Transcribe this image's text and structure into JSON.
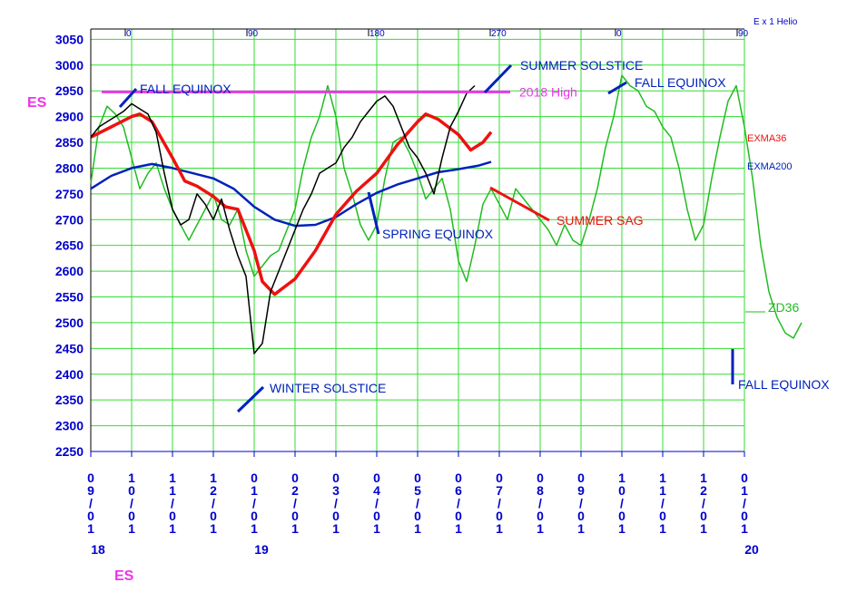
{
  "chart_data": {
    "type": "line",
    "symbol_label": "ES",
    "symbol_label_bottom": "ES",
    "top_axis_label": "E x 1 Helio",
    "top_axis_ticks": [
      "0",
      "90",
      "180",
      "270",
      "0",
      "90"
    ],
    "ylim": [
      2250,
      3070
    ],
    "y_ticks": [
      3050,
      3000,
      2950,
      2900,
      2850,
      2800,
      2750,
      2700,
      2650,
      2600,
      2550,
      2500,
      2450,
      2400,
      2350,
      2300,
      2250
    ],
    "x_date_labels": [
      "09/01",
      "10/01",
      "11/01",
      "12/01",
      "01/01",
      "02/01",
      "03/01",
      "04/01",
      "05/01",
      "06/01",
      "07/01",
      "08/01",
      "09/01",
      "10/01",
      "11/01",
      "12/01",
      "01/01"
    ],
    "year_labels": [
      "18",
      "19",
      "20"
    ],
    "grid": true,
    "colors": {
      "price": "#000000",
      "exma36": "#ee1111",
      "exma200": "#0022bb",
      "zd36": "#22bb22",
      "high_line": "#ee33ee",
      "axis_text": "#0000cc",
      "grid": "#33dd33"
    },
    "legend_labels": {
      "exma36": "EXMA36",
      "exma200": "EXMA200",
      "zd36": "ZD36"
    },
    "horizontal_line": {
      "label": "2018 High",
      "value": 2948
    },
    "annotations": {
      "fall_equinox_1": "FALL  EQUINOX",
      "summer_solstice": "SUMMER SOLSTICE",
      "fall_equinox_2": "FALL EQUINOX",
      "summer_sag": "SUMMER SAG",
      "spring_equinox": "SPRING EQUINOX",
      "winter_solstice": "WINTER SOLSTICE",
      "fall_equinox_3": "FALL EQUINOX"
    },
    "series": [
      {
        "key": "price",
        "points": [
          [
            0.0,
            2860
          ],
          [
            0.2,
            2880
          ],
          [
            0.4,
            2890
          ],
          [
            0.6,
            2900
          ],
          [
            0.8,
            2910
          ],
          [
            1.0,
            2925
          ],
          [
            1.2,
            2915
          ],
          [
            1.4,
            2905
          ],
          [
            1.6,
            2870
          ],
          [
            1.8,
            2790
          ],
          [
            2.0,
            2720
          ],
          [
            2.2,
            2690
          ],
          [
            2.4,
            2700
          ],
          [
            2.6,
            2750
          ],
          [
            2.8,
            2730
          ],
          [
            3.0,
            2700
          ],
          [
            3.2,
            2740
          ],
          [
            3.4,
            2680
          ],
          [
            3.6,
            2630
          ],
          [
            3.8,
            2590
          ],
          [
            4.0,
            2440
          ],
          [
            4.2,
            2460
          ],
          [
            4.4,
            2560
          ],
          [
            4.6,
            2600
          ],
          [
            4.8,
            2640
          ],
          [
            5.0,
            2680
          ],
          [
            5.2,
            2720
          ],
          [
            5.4,
            2750
          ],
          [
            5.6,
            2790
          ],
          [
            5.8,
            2800
          ],
          [
            6.0,
            2810
          ],
          [
            6.2,
            2840
          ],
          [
            6.4,
            2860
          ],
          [
            6.6,
            2890
          ],
          [
            6.8,
            2910
          ],
          [
            7.0,
            2930
          ],
          [
            7.2,
            2940
          ],
          [
            7.4,
            2920
          ],
          [
            7.6,
            2880
          ],
          [
            7.8,
            2840
          ],
          [
            8.0,
            2820
          ],
          [
            8.2,
            2790
          ],
          [
            8.4,
            2750
          ],
          [
            8.6,
            2820
          ],
          [
            8.8,
            2880
          ],
          [
            9.0,
            2910
          ],
          [
            9.2,
            2945
          ],
          [
            9.4,
            2960
          ]
        ]
      },
      {
        "key": "exma36",
        "points": [
          [
            0.0,
            2860
          ],
          [
            0.5,
            2880
          ],
          [
            1.0,
            2900
          ],
          [
            1.2,
            2905
          ],
          [
            1.5,
            2890
          ],
          [
            2.0,
            2820
          ],
          [
            2.3,
            2775
          ],
          [
            2.6,
            2765
          ],
          [
            3.0,
            2745
          ],
          [
            3.3,
            2725
          ],
          [
            3.6,
            2720
          ],
          [
            4.0,
            2640
          ],
          [
            4.2,
            2580
          ],
          [
            4.5,
            2555
          ],
          [
            5.0,
            2585
          ],
          [
            5.5,
            2640
          ],
          [
            6.0,
            2710
          ],
          [
            6.5,
            2755
          ],
          [
            7.0,
            2790
          ],
          [
            7.5,
            2845
          ],
          [
            8.0,
            2890
          ],
          [
            8.2,
            2905
          ],
          [
            8.5,
            2895
          ],
          [
            9.0,
            2865
          ],
          [
            9.3,
            2835
          ],
          [
            9.6,
            2850
          ],
          [
            9.8,
            2870
          ]
        ]
      },
      {
        "key": "exma200",
        "points": [
          [
            0.0,
            2760
          ],
          [
            0.5,
            2785
          ],
          [
            1.0,
            2800
          ],
          [
            1.5,
            2808
          ],
          [
            2.0,
            2800
          ],
          [
            2.5,
            2790
          ],
          [
            3.0,
            2780
          ],
          [
            3.5,
            2760
          ],
          [
            4.0,
            2725
          ],
          [
            4.5,
            2700
          ],
          [
            5.0,
            2688
          ],
          [
            5.5,
            2690
          ],
          [
            6.0,
            2705
          ],
          [
            6.5,
            2730
          ],
          [
            7.0,
            2752
          ],
          [
            7.5,
            2768
          ],
          [
            8.0,
            2780
          ],
          [
            8.5,
            2792
          ],
          [
            9.0,
            2798
          ],
          [
            9.5,
            2805
          ],
          [
            9.8,
            2812
          ]
        ]
      },
      {
        "key": "zd36",
        "points": [
          [
            0.0,
            2770
          ],
          [
            0.2,
            2880
          ],
          [
            0.4,
            2920
          ],
          [
            0.6,
            2905
          ],
          [
            0.8,
            2880
          ],
          [
            1.0,
            2820
          ],
          [
            1.2,
            2760
          ],
          [
            1.4,
            2790
          ],
          [
            1.6,
            2810
          ],
          [
            1.8,
            2760
          ],
          [
            2.0,
            2720
          ],
          [
            2.2,
            2690
          ],
          [
            2.4,
            2660
          ],
          [
            2.6,
            2690
          ],
          [
            2.8,
            2720
          ],
          [
            3.0,
            2750
          ],
          [
            3.2,
            2700
          ],
          [
            3.4,
            2690
          ],
          [
            3.6,
            2720
          ],
          [
            3.8,
            2640
          ],
          [
            4.0,
            2590
          ],
          [
            4.2,
            2610
          ],
          [
            4.4,
            2630
          ],
          [
            4.6,
            2640
          ],
          [
            4.8,
            2680
          ],
          [
            5.0,
            2720
          ],
          [
            5.2,
            2800
          ],
          [
            5.4,
            2860
          ],
          [
            5.6,
            2900
          ],
          [
            5.8,
            2960
          ],
          [
            6.0,
            2900
          ],
          [
            6.2,
            2800
          ],
          [
            6.4,
            2750
          ],
          [
            6.6,
            2690
          ],
          [
            6.8,
            2660
          ],
          [
            7.0,
            2690
          ],
          [
            7.2,
            2780
          ],
          [
            7.4,
            2850
          ],
          [
            7.6,
            2860
          ],
          [
            7.8,
            2830
          ],
          [
            8.0,
            2790
          ],
          [
            8.2,
            2740
          ],
          [
            8.4,
            2760
          ],
          [
            8.6,
            2780
          ],
          [
            8.8,
            2720
          ],
          [
            9.0,
            2620
          ],
          [
            9.2,
            2580
          ],
          [
            9.4,
            2650
          ],
          [
            9.6,
            2730
          ],
          [
            9.8,
            2760
          ],
          [
            10.0,
            2730
          ],
          [
            10.2,
            2700
          ],
          [
            10.4,
            2760
          ],
          [
            10.6,
            2740
          ],
          [
            10.8,
            2720
          ],
          [
            11.0,
            2700
          ],
          [
            11.2,
            2680
          ],
          [
            11.4,
            2650
          ],
          [
            11.6,
            2690
          ],
          [
            11.8,
            2660
          ],
          [
            12.0,
            2650
          ],
          [
            12.2,
            2700
          ],
          [
            12.4,
            2760
          ],
          [
            12.6,
            2840
          ],
          [
            12.8,
            2900
          ],
          [
            13.0,
            2980
          ],
          [
            13.2,
            2960
          ],
          [
            13.4,
            2950
          ],
          [
            13.6,
            2920
          ],
          [
            13.8,
            2910
          ],
          [
            14.0,
            2880
          ],
          [
            14.2,
            2860
          ],
          [
            14.4,
            2800
          ],
          [
            14.6,
            2720
          ],
          [
            14.8,
            2660
          ],
          [
            15.0,
            2690
          ],
          [
            15.2,
            2780
          ],
          [
            15.4,
            2860
          ],
          [
            15.6,
            2930
          ],
          [
            15.8,
            2960
          ],
          [
            16.0,
            2880
          ],
          [
            16.2,
            2780
          ],
          [
            16.4,
            2650
          ],
          [
            16.6,
            2560
          ],
          [
            16.8,
            2510
          ],
          [
            17.0,
            2480
          ],
          [
            17.2,
            2470
          ],
          [
            17.4,
            2500
          ]
        ]
      }
    ]
  }
}
